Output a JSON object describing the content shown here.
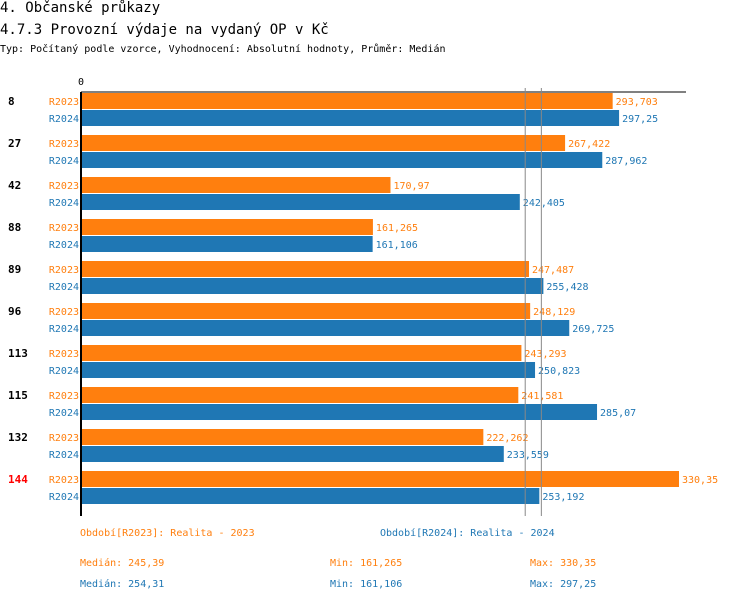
{
  "heading": "4. Občanské průkazy",
  "title": "4.7.3 Provozní výdaje na vydaný OP v Kč",
  "subtitle": "Typ: Počítaný podle vzorce, Vyhodnocení: Absolutní hodnoty, Průměr: Medián",
  "colors": {
    "R2023": "#ff7f0e",
    "R2024": "#1f77b4",
    "highlight": "#ff0000"
  },
  "chart_data": {
    "type": "bar",
    "orientation": "horizontal",
    "axis_tick": "0",
    "xlim": [
      0,
      330.35
    ],
    "categories": [
      "8",
      "27",
      "42",
      "88",
      "89",
      "96",
      "113",
      "115",
      "132",
      "144"
    ],
    "highlighted_category": "144",
    "series": [
      {
        "name": "R2023",
        "values": [
          293.703,
          267.422,
          170.97,
          161.265,
          247.487,
          248.129,
          243.293,
          241.581,
          222.262,
          330.35
        ],
        "labels": [
          "293,703",
          "267,422",
          "170,97",
          "161,265",
          "247,487",
          "248,129",
          "243,293",
          "241,581",
          "222,262",
          "330,35"
        ],
        "median": 245.39
      },
      {
        "name": "R2024",
        "values": [
          297.25,
          287.962,
          242.405,
          161.106,
          255.428,
          269.725,
          250.823,
          285.07,
          233.559,
          253.192
        ],
        "labels": [
          "297,25",
          "287,962",
          "242,405",
          "161,106",
          "255,428",
          "269,725",
          "250,823",
          "285,07",
          "233,559",
          "253,192"
        ],
        "median": 254.31
      }
    ]
  },
  "legend": {
    "r2023": "Období[R2023]: Realita - 2023",
    "r2024": "Období[R2024]: Realita - 2024"
  },
  "stats": {
    "r2023": {
      "median": "Medián: 245,39",
      "min": "Min: 161,265",
      "max": "Max: 330,35"
    },
    "r2024": {
      "median": "Medián: 254,31",
      "min": "Min: 161,106",
      "max": "Max: 297,25"
    }
  }
}
